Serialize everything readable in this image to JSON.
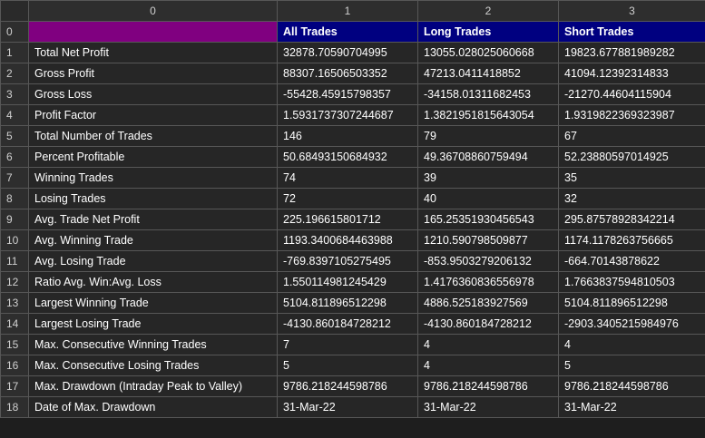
{
  "colors": {
    "label_header_bg": "#800080",
    "column_header_bg": "#000080",
    "cell_bg": "#262626",
    "index_bg": "#2e2e2e"
  },
  "columns": [
    "0",
    "1",
    "2",
    "3"
  ],
  "header_row": {
    "index": "0",
    "cells": [
      "",
      "All Trades",
      "Long Trades",
      "Short Trades"
    ]
  },
  "rows": [
    {
      "index": "1",
      "cells": [
        "Total Net Profit",
        "32878.70590704995",
        "13055.028025060668",
        "19823.677881989282"
      ]
    },
    {
      "index": "2",
      "cells": [
        "Gross Profit",
        "88307.16506503352",
        "47213.0411418852",
        "41094.12392314833"
      ]
    },
    {
      "index": "3",
      "cells": [
        "Gross Loss",
        "-55428.45915798357",
        "-34158.01311682453",
        "-21270.44604115904"
      ]
    },
    {
      "index": "4",
      "cells": [
        "Profit Factor",
        "1.5931737307244687",
        "1.3821951815643054",
        "1.9319822369323987"
      ]
    },
    {
      "index": "5",
      "cells": [
        "Total Number of Trades",
        "146",
        "79",
        "67"
      ]
    },
    {
      "index": "6",
      "cells": [
        "Percent Profitable",
        "50.68493150684932",
        "49.36708860759494",
        "52.23880597014925"
      ]
    },
    {
      "index": "7",
      "cells": [
        "Winning Trades",
        "74",
        "39",
        "35"
      ]
    },
    {
      "index": "8",
      "cells": [
        "Losing Trades",
        "72",
        "40",
        "32"
      ]
    },
    {
      "index": "9",
      "cells": [
        "Avg. Trade Net Profit",
        "225.196615801712",
        "165.25351930456543",
        "295.87578928342214"
      ]
    },
    {
      "index": "10",
      "cells": [
        "Avg. Winning Trade",
        "1193.3400684463988",
        "1210.590798509877",
        "1174.1178263756665"
      ]
    },
    {
      "index": "11",
      "cells": [
        "Avg. Losing Trade",
        "-769.8397105275495",
        "-853.9503279206132",
        "-664.70143878622"
      ]
    },
    {
      "index": "12",
      "cells": [
        "Ratio Avg. Win:Avg. Loss",
        "1.550114981245429",
        "1.4176360836556978",
        "1.7663837594810503"
      ]
    },
    {
      "index": "13",
      "cells": [
        "Largest Winning Trade",
        "5104.811896512298",
        "4886.525183927569",
        "5104.811896512298"
      ]
    },
    {
      "index": "14",
      "cells": [
        "Largest Losing Trade",
        "-4130.860184728212",
        "-4130.860184728212",
        "-2903.3405215984976"
      ]
    },
    {
      "index": "15",
      "cells": [
        "Max. Consecutive Winning Trades",
        "7",
        "4",
        "4"
      ]
    },
    {
      "index": "16",
      "cells": [
        "Max. Consecutive Losing Trades",
        "5",
        "4",
        "5"
      ]
    },
    {
      "index": "17",
      "cells": [
        "Max. Drawdown (Intraday Peak to Valley)",
        "9786.218244598786",
        "9786.218244598786",
        "9786.218244598786"
      ]
    },
    {
      "index": "18",
      "cells": [
        "Date of Max. Drawdown",
        "31-Mar-22",
        "31-Mar-22",
        "31-Mar-22"
      ]
    }
  ]
}
